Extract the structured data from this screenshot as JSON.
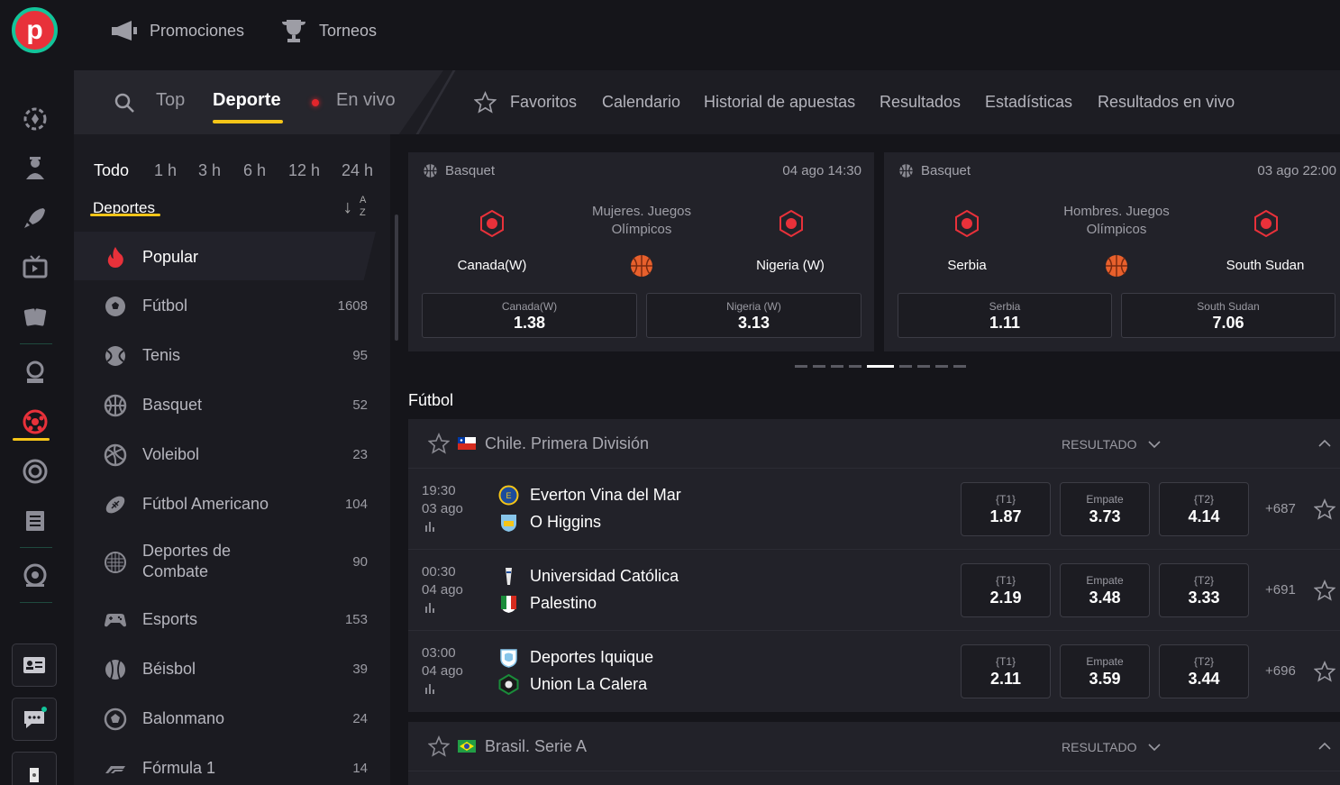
{
  "topbar": {
    "promotions": "Promociones",
    "tournaments": "Torneos"
  },
  "nav": {
    "top": "Top",
    "sports": "Deporte",
    "live": "En vivo",
    "favorites": "Favoritos",
    "calendar": "Calendario",
    "history": "Historial de apuestas",
    "results": "Resultados",
    "stats": "Estadísticas",
    "live_results": "Resultados en vivo"
  },
  "sidebar": {
    "filters": [
      "Todo",
      "1 h",
      "3 h",
      "6 h",
      "12 h",
      "24 h"
    ],
    "sports_label": "Deportes",
    "sort_a": "A",
    "sort_z": "Z",
    "popular": "Popular",
    "sports": [
      {
        "name": "Fútbol",
        "count": "1608",
        "icon": "soccer-icon"
      },
      {
        "name": "Tenis",
        "count": "95",
        "icon": "tennis-icon"
      },
      {
        "name": "Basquet",
        "count": "52",
        "icon": "basketball-icon"
      },
      {
        "name": "Voleibol",
        "count": "23",
        "icon": "volleyball-icon"
      },
      {
        "name": "Fútbol Americano",
        "count": "104",
        "icon": "football-icon"
      },
      {
        "name": "Deportes de Combate",
        "count": "90",
        "icon": "combat-icon"
      },
      {
        "name": "Esports",
        "count": "153",
        "icon": "gamepad-icon"
      },
      {
        "name": "Béisbol",
        "count": "39",
        "icon": "baseball-icon"
      },
      {
        "name": "Balonmano",
        "count": "24",
        "icon": "handball-icon"
      },
      {
        "name": "Fórmula 1",
        "count": "14",
        "icon": "f1-icon"
      }
    ]
  },
  "featured": [
    {
      "sport": "Basquet",
      "date": "04 ago 14:30",
      "league_line1": "Mujeres. Juegos",
      "league_line2": "Olímpicos",
      "team1": "Canada(W)",
      "team2": "Nigeria (W)",
      "odd1_label": "Canada(W)",
      "odd1": "1.38",
      "odd2_label": "Nigeria (W)",
      "odd2": "3.13"
    },
    {
      "sport": "Basquet",
      "date": "03 ago 22:00",
      "league_line1": "Hombres. Juegos",
      "league_line2": "Olímpicos",
      "team1": "Serbia",
      "team2": "South Sudan",
      "odd1_label": "Serbia",
      "odd1": "1.11",
      "odd2_label": "South Sudan",
      "odd2": "7.06"
    }
  ],
  "section_title": "Fútbol",
  "leagues": [
    {
      "name": "Chile. Primera División",
      "result_label": "RESULTADO",
      "matches": [
        {
          "time": "19:30",
          "date": "03 ago",
          "home": "Everton Vina del Mar",
          "away": "O Higgins",
          "t1_label": "{T1}",
          "t1": "1.87",
          "x_label": "Empate",
          "x": "3.73",
          "t2_label": "{T2}",
          "t2": "4.14",
          "more": "+687"
        },
        {
          "time": "00:30",
          "date": "04 ago",
          "home": "Universidad Católica",
          "away": "Palestino",
          "t1_label": "{T1}",
          "t1": "2.19",
          "x_label": "Empate",
          "x": "3.48",
          "t2_label": "{T2}",
          "t2": "3.33",
          "more": "+691"
        },
        {
          "time": "03:00",
          "date": "04 ago",
          "home": "Deportes Iquique",
          "away": "Union La Calera",
          "t1_label": "{T1}",
          "t1": "2.11",
          "x_label": "Empate",
          "x": "3.59",
          "t2_label": "{T2}",
          "t2": "3.44",
          "more": "+696"
        }
      ]
    },
    {
      "name": "Brasil. Serie A",
      "result_label": "RESULTADO",
      "matches": []
    }
  ],
  "colors": {
    "accent": "#f5c518",
    "brand_red": "#e8313a",
    "brand_green": "#13c49a",
    "live": "#e3262c"
  }
}
